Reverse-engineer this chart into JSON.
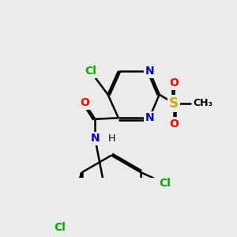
{
  "bg_color": "#ebebeb",
  "bond_color": "#000000",
  "bond_width": 1.8,
  "atom_colors": {
    "C": "#000000",
    "N": "#0000cc",
    "O": "#ff0000",
    "Cl": "#00aa00",
    "S": "#ccaa00",
    "H": "#000000"
  },
  "font_size": 10,
  "fig_size": [
    3.0,
    3.0
  ],
  "dpi": 100
}
